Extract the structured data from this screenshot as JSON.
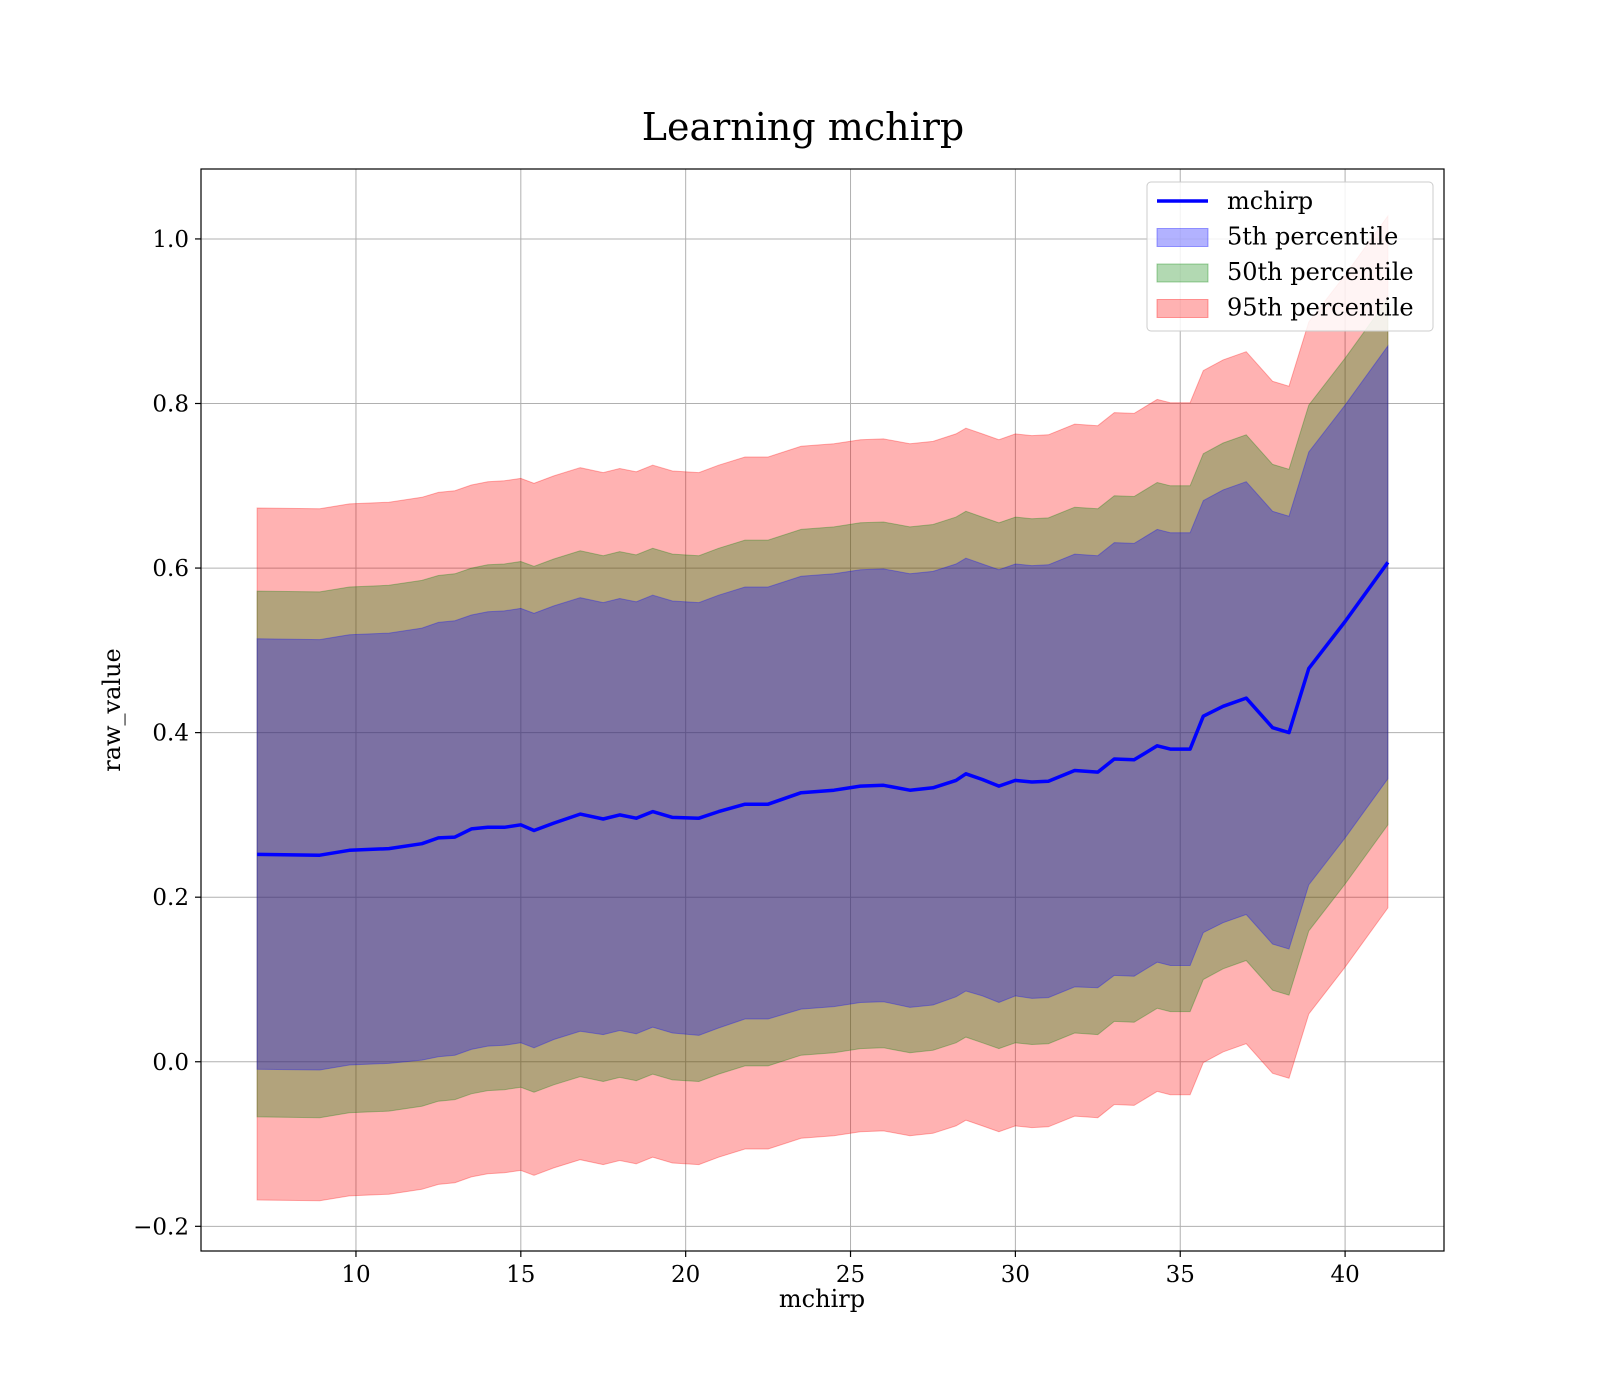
{
  "chart_data": {
    "type": "area",
    "title": "Learning mchirp",
    "xlabel": "mchirp",
    "ylabel": "raw_value",
    "xlim": [
      5.3,
      43.0
    ],
    "ylim": [
      -0.23,
      1.085
    ],
    "xticks": [
      10,
      15,
      20,
      25,
      30,
      35,
      40
    ],
    "yticks": [
      -0.2,
      0.0,
      0.2,
      0.4,
      0.6,
      0.8,
      1.0
    ],
    "ytick_labels": [
      "−0.2",
      "0.0",
      "0.2",
      "0.4",
      "0.6",
      "0.8",
      "1.0"
    ],
    "grid": true,
    "legend_position": "top-right",
    "x": [
      7.0,
      8.9,
      9.8,
      11.0,
      12.0,
      12.5,
      13.0,
      13.5,
      14.0,
      14.5,
      15.0,
      15.4,
      16.0,
      16.8,
      17.5,
      18.0,
      18.5,
      19.0,
      19.6,
      20.4,
      21.0,
      21.8,
      22.5,
      23.5,
      24.5,
      25.3,
      26.0,
      26.8,
      27.5,
      28.2,
      28.5,
      29.0,
      29.5,
      30.0,
      30.5,
      31.0,
      31.8,
      32.5,
      33.0,
      33.6,
      34.3,
      34.7,
      35.3,
      35.7,
      36.3,
      37.0,
      37.8,
      38.3,
      38.9,
      40.0,
      41.3
    ],
    "series": [
      {
        "name": "mchirp",
        "color": "#0000ff",
        "values": [
          0.252,
          0.251,
          0.257,
          0.259,
          0.265,
          0.272,
          0.273,
          0.283,
          0.285,
          0.285,
          0.288,
          0.281,
          0.29,
          0.301,
          0.295,
          0.3,
          0.296,
          0.304,
          0.297,
          0.296,
          0.304,
          0.313,
          0.313,
          0.327,
          0.33,
          0.335,
          0.336,
          0.33,
          0.333,
          0.342,
          0.35,
          0.343,
          0.335,
          0.342,
          0.34,
          0.341,
          0.354,
          0.352,
          0.368,
          0.367,
          0.384,
          0.38,
          0.38,
          0.42,
          0.432,
          0.442,
          0.406,
          0.4,
          0.478,
          0.535,
          0.607
        ]
      },
      {
        "name": "5th percentile",
        "color": "#0000ff",
        "lower": [
          -0.009,
          -0.01,
          -0.004,
          -0.002,
          0.002,
          0.006,
          0.008,
          0.015,
          0.019,
          0.02,
          0.023,
          0.017,
          0.027,
          0.037,
          0.033,
          0.038,
          0.034,
          0.042,
          0.035,
          0.032,
          0.041,
          0.052,
          0.052,
          0.064,
          0.067,
          0.072,
          0.073,
          0.066,
          0.069,
          0.079,
          0.086,
          0.08,
          0.072,
          0.08,
          0.077,
          0.078,
          0.091,
          0.09,
          0.105,
          0.104,
          0.121,
          0.117,
          0.117,
          0.157,
          0.169,
          0.179,
          0.143,
          0.137,
          0.215,
          0.272,
          0.344
        ],
        "upper": [
          0.514,
          0.513,
          0.519,
          0.521,
          0.527,
          0.534,
          0.536,
          0.543,
          0.547,
          0.548,
          0.551,
          0.545,
          0.554,
          0.564,
          0.558,
          0.563,
          0.559,
          0.567,
          0.56,
          0.558,
          0.567,
          0.577,
          0.577,
          0.59,
          0.593,
          0.598,
          0.599,
          0.593,
          0.596,
          0.605,
          0.612,
          0.605,
          0.598,
          0.605,
          0.603,
          0.604,
          0.617,
          0.615,
          0.631,
          0.63,
          0.647,
          0.643,
          0.643,
          0.682,
          0.695,
          0.705,
          0.669,
          0.663,
          0.741,
          0.798,
          0.87
        ]
      },
      {
        "name": "50th percentile",
        "color": "#008000",
        "lower": [
          -0.067,
          -0.068,
          -0.062,
          -0.06,
          -0.054,
          -0.048,
          -0.046,
          -0.039,
          -0.035,
          -0.034,
          -0.031,
          -0.037,
          -0.028,
          -0.018,
          -0.024,
          -0.019,
          -0.023,
          -0.015,
          -0.022,
          -0.024,
          -0.015,
          -0.005,
          -0.005,
          0.008,
          0.011,
          0.016,
          0.017,
          0.011,
          0.014,
          0.023,
          0.03,
          0.023,
          0.016,
          0.023,
          0.021,
          0.022,
          0.035,
          0.033,
          0.049,
          0.048,
          0.065,
          0.061,
          0.061,
          0.1,
          0.113,
          0.123,
          0.087,
          0.081,
          0.159,
          0.216,
          0.288
        ],
        "upper": [
          0.572,
          0.571,
          0.577,
          0.579,
          0.585,
          0.591,
          0.593,
          0.6,
          0.604,
          0.605,
          0.608,
          0.602,
          0.611,
          0.621,
          0.615,
          0.62,
          0.616,
          0.624,
          0.617,
          0.615,
          0.624,
          0.634,
          0.634,
          0.647,
          0.65,
          0.655,
          0.656,
          0.65,
          0.653,
          0.662,
          0.669,
          0.662,
          0.655,
          0.662,
          0.66,
          0.661,
          0.674,
          0.672,
          0.688,
          0.687,
          0.704,
          0.7,
          0.7,
          0.739,
          0.752,
          0.762,
          0.726,
          0.72,
          0.798,
          0.855,
          0.927
        ]
      },
      {
        "name": "95th percentile",
        "color": "#ff0000",
        "lower": [
          -0.168,
          -0.169,
          -0.163,
          -0.161,
          -0.155,
          -0.149,
          -0.147,
          -0.14,
          -0.136,
          -0.135,
          -0.132,
          -0.138,
          -0.129,
          -0.119,
          -0.125,
          -0.12,
          -0.124,
          -0.116,
          -0.123,
          -0.125,
          -0.116,
          -0.106,
          -0.106,
          -0.093,
          -0.09,
          -0.085,
          -0.084,
          -0.09,
          -0.087,
          -0.078,
          -0.071,
          -0.078,
          -0.085,
          -0.078,
          -0.08,
          -0.079,
          -0.066,
          -0.068,
          -0.052,
          -0.053,
          -0.036,
          -0.04,
          -0.04,
          -0.001,
          0.012,
          0.022,
          -0.014,
          -0.02,
          0.058,
          0.115,
          0.187
        ],
        "upper": [
          0.673,
          0.672,
          0.678,
          0.68,
          0.686,
          0.692,
          0.694,
          0.701,
          0.705,
          0.706,
          0.709,
          0.703,
          0.712,
          0.722,
          0.716,
          0.721,
          0.717,
          0.725,
          0.718,
          0.716,
          0.725,
          0.735,
          0.735,
          0.748,
          0.751,
          0.756,
          0.757,
          0.751,
          0.754,
          0.763,
          0.77,
          0.763,
          0.756,
          0.763,
          0.761,
          0.762,
          0.775,
          0.773,
          0.789,
          0.788,
          0.805,
          0.801,
          0.801,
          0.84,
          0.853,
          0.863,
          0.827,
          0.821,
          0.899,
          0.956,
          1.028
        ]
      }
    ]
  }
}
